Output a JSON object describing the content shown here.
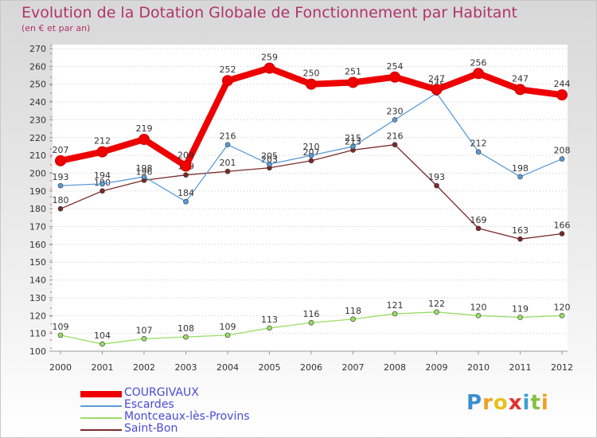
{
  "header": {
    "title": "Evolution de la Dotation Globale de Fonctionnement par Habitant",
    "subtitle": "(en € et par an)"
  },
  "logo": {
    "text": "Proxiti"
  },
  "colors": {
    "title": "#b0336a",
    "COURGIVAUX": "#ee0000",
    "Escardes": "#5b9bd5",
    "Montceaux": "#99dd66",
    "SaintBon": "#7a2a2a",
    "legend_text": "#4a4ad8"
  },
  "chart_data": {
    "type": "line",
    "title": "Evolution de la Dotation Globale de Fonctionnement par Habitant",
    "subtitle": "(en € et par an)",
    "xlabel": "",
    "ylabel": "",
    "ylim": [
      100,
      270
    ],
    "ytick_step": 10,
    "grid": "horizontal dotted",
    "legend_position": "bottom-left",
    "categories": [
      "2000",
      "2001",
      "2002",
      "2003",
      "2004",
      "2005",
      "2006",
      "2007",
      "2008",
      "2009",
      "2010",
      "2011",
      "2012"
    ],
    "series": [
      {
        "name": "COURGIVAUX",
        "color": "#ee0000",
        "values": [
          207,
          212,
          219,
          204,
          252,
          259,
          250,
          251,
          254,
          247,
          256,
          247,
          244
        ]
      },
      {
        "name": "Escardes",
        "color": "#5b9bd5",
        "values": [
          193,
          194,
          198,
          184,
          216,
          205,
          210,
          215,
          230,
          245,
          212,
          198,
          208
        ]
      },
      {
        "name": "Montceaux-lès-Provins",
        "color": "#99dd66",
        "values": [
          109,
          104,
          107,
          108,
          109,
          113,
          116,
          118,
          121,
          122,
          120,
          119,
          120
        ]
      },
      {
        "name": "Saint-Bon",
        "color": "#7a2a2a",
        "values": [
          180,
          190,
          196,
          199,
          201,
          203,
          207,
          213,
          216,
          193,
          169,
          163,
          166
        ]
      }
    ]
  }
}
